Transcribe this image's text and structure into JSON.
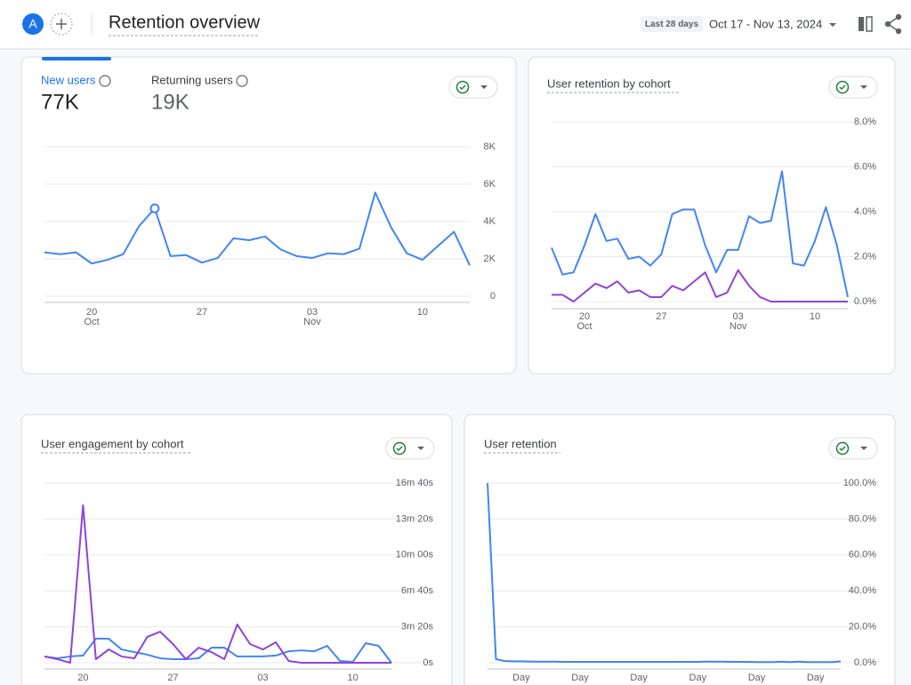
{
  "header": {
    "avatar": "A",
    "title": "Retention overview",
    "range_label": "Last 28 days",
    "date_range": "Oct 17 - Nov 13, 2024"
  },
  "chart_data": [
    {
      "type": "line",
      "tabs": [
        {
          "label": "New users",
          "value": "77K"
        },
        {
          "label": "Returning users",
          "value": "19K"
        }
      ],
      "categories": [
        null,
        null,
        null,
        "20",
        null,
        null,
        null,
        null,
        null,
        null,
        "27",
        null,
        null,
        null,
        null,
        null,
        null,
        "03",
        null,
        null,
        null,
        null,
        null,
        null,
        "10",
        null,
        null,
        null
      ],
      "category_months": [
        null,
        null,
        null,
        "Oct",
        null,
        null,
        null,
        null,
        null,
        null,
        null,
        null,
        null,
        null,
        null,
        null,
        null,
        "Nov",
        null,
        null,
        null,
        null,
        null,
        null,
        null,
        null,
        null,
        null
      ],
      "series": [
        {
          "color": "#4285f4",
          "values": [
            2350,
            2250,
            2350,
            1750,
            1950,
            2250,
            3750,
            4700,
            2150,
            2200,
            1800,
            2050,
            3100,
            3000,
            3200,
            2500,
            2150,
            2050,
            2300,
            2250,
            2550,
            5550,
            3700,
            2300,
            1950,
            2700,
            3450,
            1650
          ]
        }
      ],
      "ylim": [
        0,
        8000
      ],
      "yticks": [
        0,
        {
          "value": 2000,
          "label": "2K"
        },
        {
          "value": 4000,
          "label": "4K"
        },
        {
          "value": 6000,
          "label": "6K"
        },
        {
          "value": 8000,
          "label": "8K"
        }
      ],
      "grid": true
    },
    {
      "type": "line",
      "title": "User retention by cohort",
      "categories": [
        null,
        null,
        null,
        "20",
        null,
        null,
        null,
        null,
        null,
        null,
        "27",
        null,
        null,
        null,
        null,
        null,
        null,
        "03",
        null,
        null,
        null,
        null,
        null,
        null,
        "10",
        null,
        null,
        null
      ],
      "category_months": [
        null,
        null,
        null,
        "Oct",
        null,
        null,
        null,
        null,
        null,
        null,
        null,
        null,
        null,
        null,
        null,
        null,
        null,
        "Nov",
        null,
        null,
        null,
        null,
        null,
        null,
        null,
        null,
        null,
        null
      ],
      "series": [
        {
          "color": "#4285f4",
          "values": [
            2.4,
            1.2,
            1.3,
            2.5,
            3.9,
            2.7,
            2.8,
            1.9,
            2.0,
            1.6,
            2.1,
            3.9,
            4.1,
            4.1,
            2.5,
            1.3,
            2.3,
            2.3,
            3.8,
            3.5,
            3.6,
            5.8,
            1.7,
            1.6,
            2.7,
            4.2,
            2.5,
            0.2
          ]
        },
        {
          "color": "#8e44d8",
          "values": [
            0.3,
            0.3,
            0.0,
            0.4,
            0.8,
            0.6,
            0.9,
            0.4,
            0.5,
            0.2,
            0.2,
            0.7,
            0.5,
            0.9,
            1.3,
            0.2,
            0.4,
            1.4,
            0.7,
            0.2,
            0.0,
            0.0,
            0.0,
            0.0,
            0.0,
            0.0,
            0.0,
            0.0
          ]
        }
      ],
      "ylim": [
        0,
        8
      ],
      "yticks": [
        {
          "value": 0,
          "label": "0.0%"
        },
        {
          "value": 2,
          "label": "2.0%"
        },
        {
          "value": 4,
          "label": "4.0%"
        },
        {
          "value": 6,
          "label": "6.0%"
        },
        {
          "value": 8,
          "label": "8.0%"
        }
      ],
      "grid": true
    },
    {
      "type": "line",
      "title": "User engagement by cohort",
      "categories": [
        null,
        null,
        null,
        "20",
        null,
        null,
        null,
        null,
        null,
        null,
        "27",
        null,
        null,
        null,
        null,
        null,
        null,
        "03",
        null,
        null,
        null,
        null,
        null,
        null,
        "10",
        null,
        null,
        null
      ],
      "series": [
        {
          "color": "#4285f4",
          "values": [
            35,
            25,
            35,
            40,
            134,
            134,
            74,
            59,
            45,
            25,
            20,
            20,
            25,
            84,
            84,
            35,
            35,
            35,
            40,
            64,
            69,
            64,
            94,
            10,
            5,
            109,
            94,
            0
          ]
        },
        {
          "color": "#8e44d8",
          "values": [
            35,
            20,
            0,
            876,
            20,
            74,
            35,
            25,
            144,
            173,
            104,
            20,
            84,
            59,
            20,
            213,
            104,
            74,
            114,
            10,
            0,
            0,
            0,
            0,
            0,
            0,
            0,
            0
          ]
        }
      ],
      "ylim": [
        0,
        1000
      ],
      "yticks": [
        {
          "value": 0,
          "label": "0s"
        },
        {
          "value": 200,
          "label": "3m 20s"
        },
        {
          "value": 400,
          "label": "6m 40s"
        },
        {
          "value": 600,
          "label": "10m 00s"
        },
        {
          "value": 800,
          "label": "13m 20s"
        },
        {
          "value": 1000,
          "label": "16m 40s"
        }
      ],
      "grid": true
    },
    {
      "type": "line",
      "title": "User retention",
      "categories": [
        null,
        null,
        null,
        null,
        "Day",
        null,
        null,
        null,
        null,
        null,
        null,
        "Day",
        null,
        null,
        null,
        null,
        null,
        null,
        "Day",
        null,
        null,
        null,
        null,
        null,
        null,
        "Day",
        null,
        null,
        null,
        null,
        null,
        null,
        "Day",
        null,
        null,
        null,
        null,
        null,
        null,
        "Day",
        null,
        null,
        null
      ],
      "series": [
        {
          "color": "#4285f4",
          "values": [
            100,
            2,
            1,
            0.8,
            0.8,
            0.7,
            0.6,
            0.6,
            0.6,
            0.5,
            0.5,
            0.5,
            0.5,
            0.5,
            0.5,
            0.5,
            0.5,
            0.5,
            0.5,
            0.5,
            0.5,
            0.5,
            0.5,
            0.5,
            0.5,
            0.5,
            0.7,
            0.6,
            0.6,
            0.5,
            0.5,
            0.5,
            0.4,
            0.4,
            0.4,
            0.6,
            0.4,
            0.6,
            0.4,
            0.4,
            0.4,
            0.4,
            0.8
          ]
        }
      ],
      "ylim": [
        0,
        100
      ],
      "yticks": [
        {
          "value": 0,
          "label": "0.0%"
        },
        {
          "value": 20,
          "label": "20.0%"
        },
        {
          "value": 40,
          "label": "40.0%"
        },
        {
          "value": 60,
          "label": "60.0%"
        },
        {
          "value": 80,
          "label": "80.0%"
        },
        {
          "value": 100,
          "label": "100.0%"
        }
      ],
      "grid": true
    }
  ]
}
